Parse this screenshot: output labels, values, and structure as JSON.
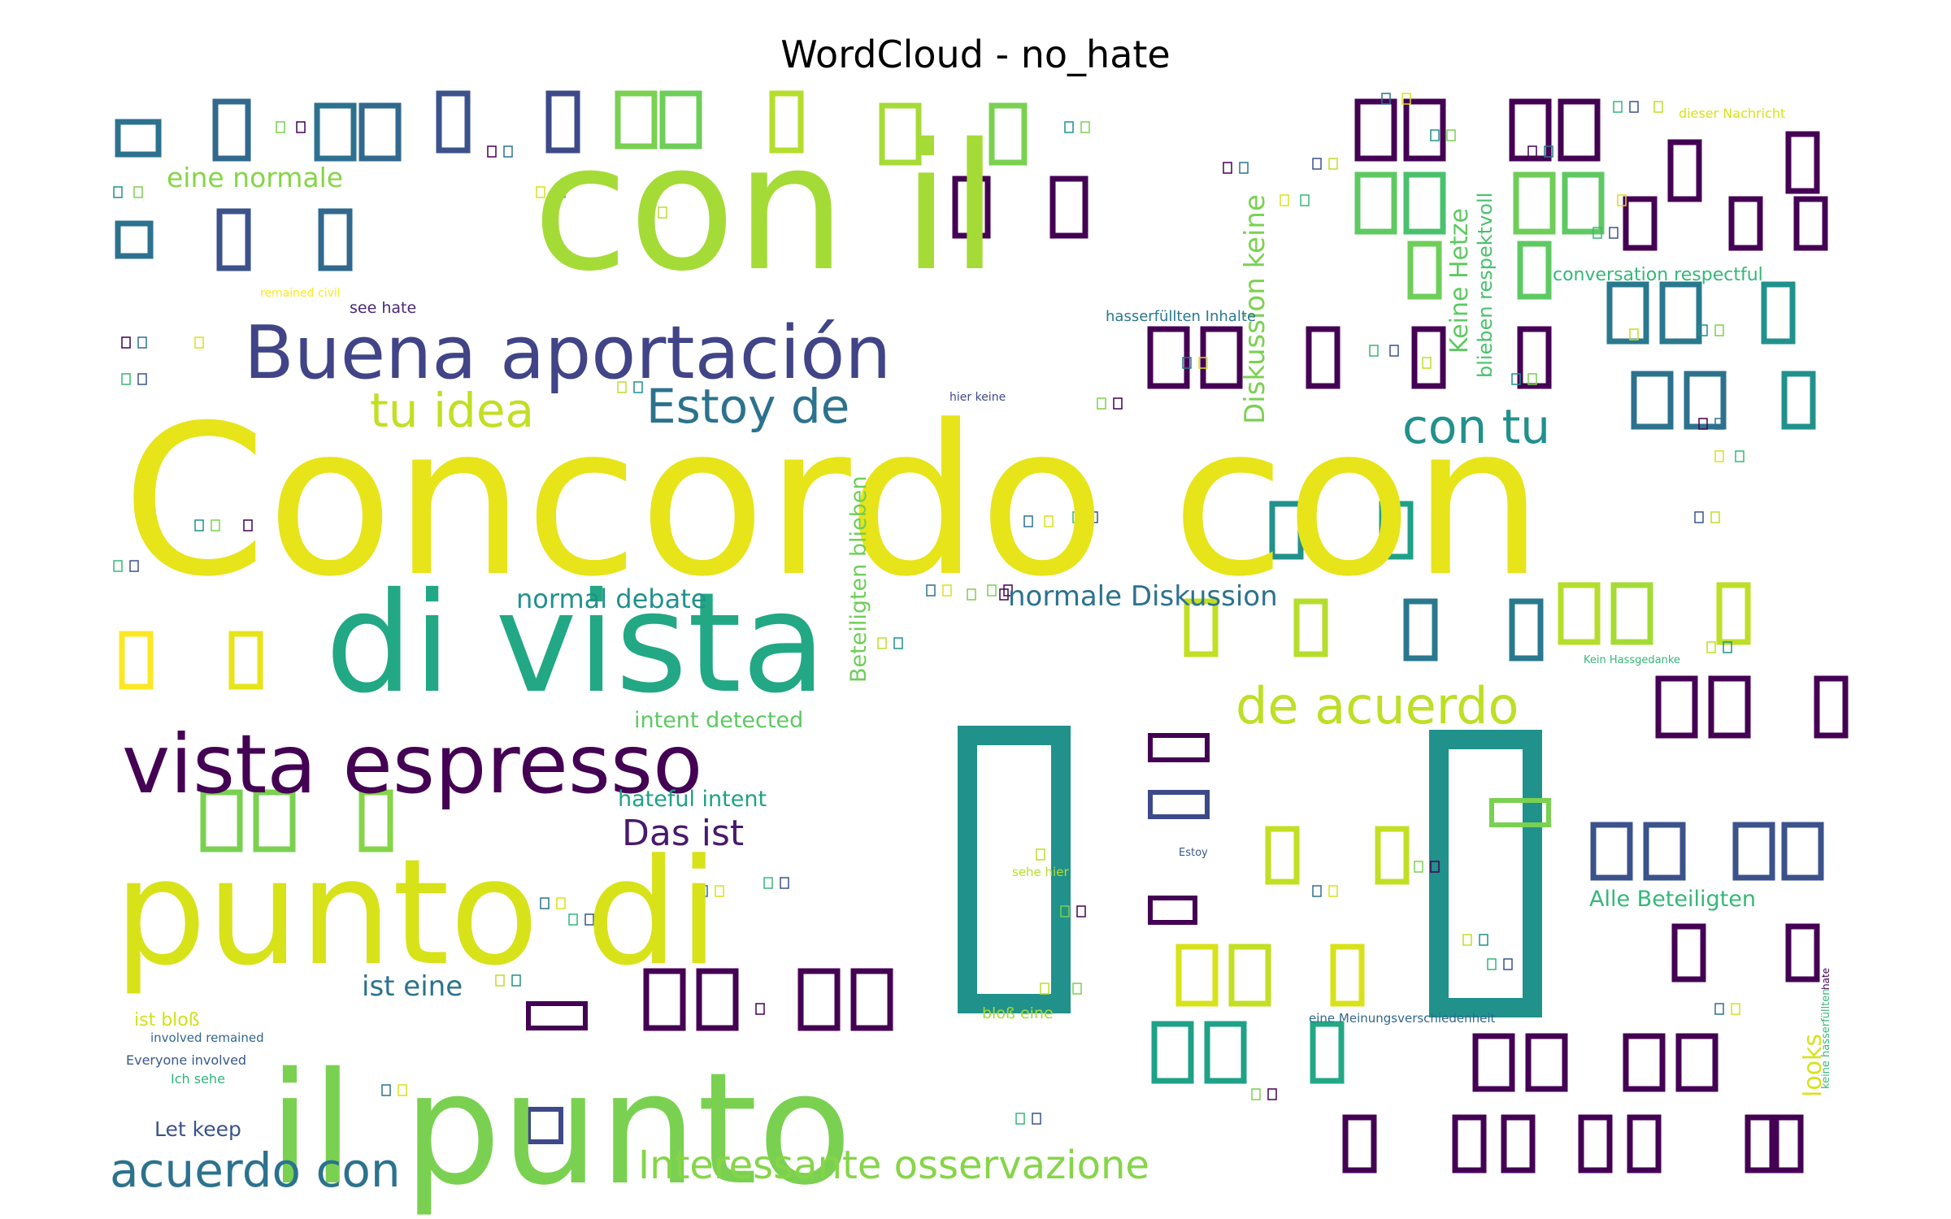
{
  "chart_data": {
    "type": "wordcloud",
    "title": "WordCloud - no_hate",
    "words": [
      {
        "text": "Concordo con",
        "color": "#e7e419"
      },
      {
        "text": "con il",
        "color": "#a5db36"
      },
      {
        "text": "di vista",
        "color": "#22a884"
      },
      {
        "text": "punto di",
        "color": "#d8e219"
      },
      {
        "text": "il punto",
        "color": "#7ad151"
      },
      {
        "text": "vista espresso",
        "color": "#440154"
      },
      {
        "text": "Buena aportación",
        "color": "#414487"
      },
      {
        "text": "tu idea",
        "color": "#c2df23"
      },
      {
        "text": "Estoy de",
        "color": "#2c728e"
      },
      {
        "text": "con tu",
        "color": "#21918c"
      },
      {
        "text": "de acuerdo",
        "color": "#bddf26"
      },
      {
        "text": "acuerdo con",
        "color": "#2c728e"
      },
      {
        "text": "Interessante osservazione",
        "color": "#86d549"
      },
      {
        "text": "Das ist",
        "color": "#481a6c"
      },
      {
        "text": "normal debate",
        "color": "#21918c"
      },
      {
        "text": "normale Diskussion",
        "color": "#2c728e"
      },
      {
        "text": "eine normale",
        "color": "#86d549"
      },
      {
        "text": "Diskussion keine",
        "color": "#7ad151"
      },
      {
        "text": "Keine Hetze",
        "color": "#5ec962"
      },
      {
        "text": "blieben respektvoll",
        "color": "#4ac16d"
      },
      {
        "text": "Beteiligten blieben",
        "color": "#6ece58"
      },
      {
        "text": "ist eine",
        "color": "#2c728e"
      },
      {
        "text": "Alle Beteiligten",
        "color": "#35b779"
      },
      {
        "text": "looks",
        "color": "#d8e219"
      },
      {
        "text": "hateful intent",
        "color": "#1fa187"
      },
      {
        "text": "intent detected",
        "color": "#5ec962"
      },
      {
        "text": "Let keep",
        "color": "#3b528b"
      },
      {
        "text": "conversation respectful",
        "color": "#35b779"
      },
      {
        "text": "hasserfüllten Inhalte",
        "color": "#2a788e"
      },
      {
        "text": "dieser Nachricht",
        "color": "#d8e219"
      },
      {
        "text": "see hate",
        "color": "#482878"
      },
      {
        "text": "remained civil",
        "color": "#fde725"
      },
      {
        "text": "hier keine",
        "color": "#3e4989"
      },
      {
        "text": "ist bloß",
        "color": "#d0e11c"
      },
      {
        "text": "involved remained",
        "color": "#31688e"
      },
      {
        "text": "Everyone involved",
        "color": "#38588c"
      },
      {
        "text": "Ich sehe",
        "color": "#2fb47c"
      },
      {
        "text": "bloß eine",
        "color": "#a5db36"
      },
      {
        "text": "eine Meinungsverschiedenheit",
        "color": "#31688e"
      },
      {
        "text": "keine hasserfüllten",
        "color": "#38b977"
      },
      {
        "text": "Kein Hassgedanke",
        "color": "#35b779"
      },
      {
        "text": "sehe hier",
        "color": "#b5de2b"
      },
      {
        "text": "hate",
        "color": "#440154"
      },
      {
        "text": "Estoy",
        "color": "#39568c"
      }
    ]
  }
}
